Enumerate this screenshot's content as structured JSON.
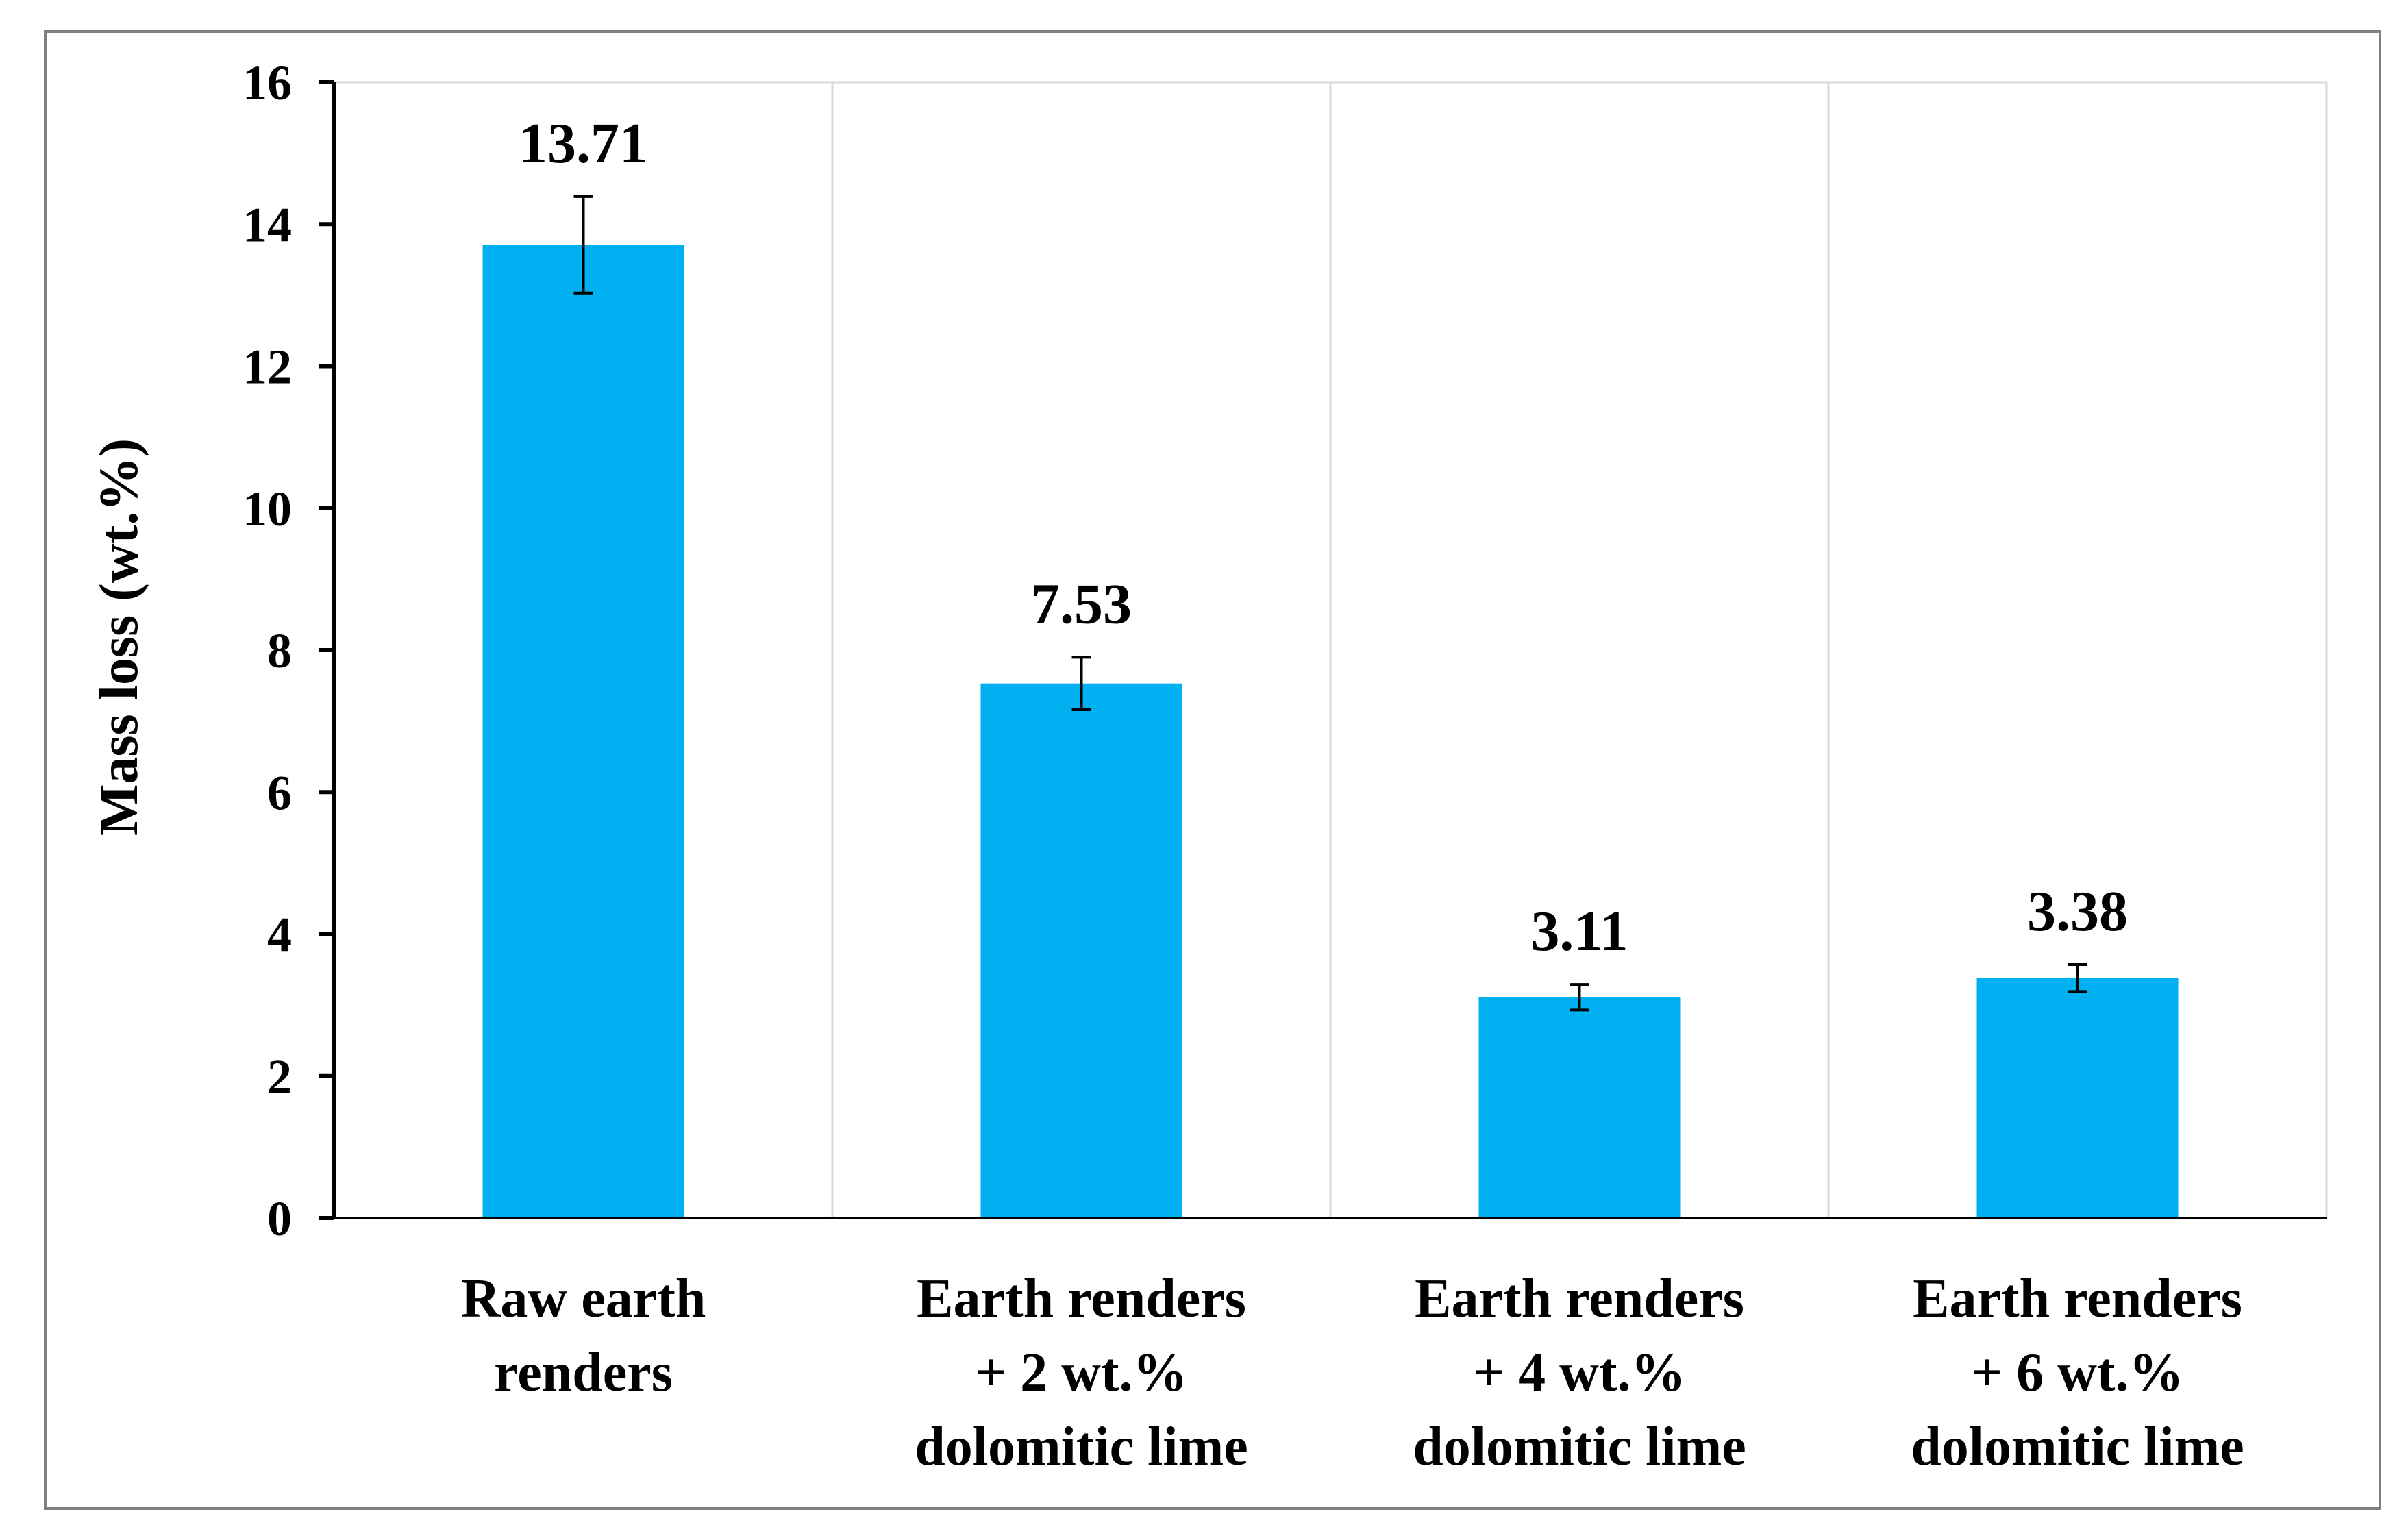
{
  "chart_data": {
    "type": "bar",
    "title": "",
    "xlabel": "",
    "ylabel": "Mass loss (wt.%)",
    "ylim": [
      0,
      16
    ],
    "yticks": [
      0,
      2,
      4,
      6,
      8,
      10,
      12,
      14,
      16
    ],
    "grid": "vertical lines between categories",
    "legend": "none",
    "bar_color": "#00b0f0",
    "categories": [
      [
        "Raw earth",
        "renders"
      ],
      [
        "Earth renders",
        "+ 2 wt.%",
        "dolomitic lime"
      ],
      [
        "Earth renders",
        "+ 4 wt.%",
        "dolomitic lime"
      ],
      [
        "Earth renders",
        "+ 6 wt.%",
        "dolomitic lime"
      ]
    ],
    "values": [
      13.71,
      7.53,
      3.11,
      3.38
    ],
    "error": [
      0.68,
      0.37,
      0.18,
      0.19
    ],
    "data_labels": [
      "13.71",
      "7.53",
      "3.11",
      "3.38"
    ]
  }
}
